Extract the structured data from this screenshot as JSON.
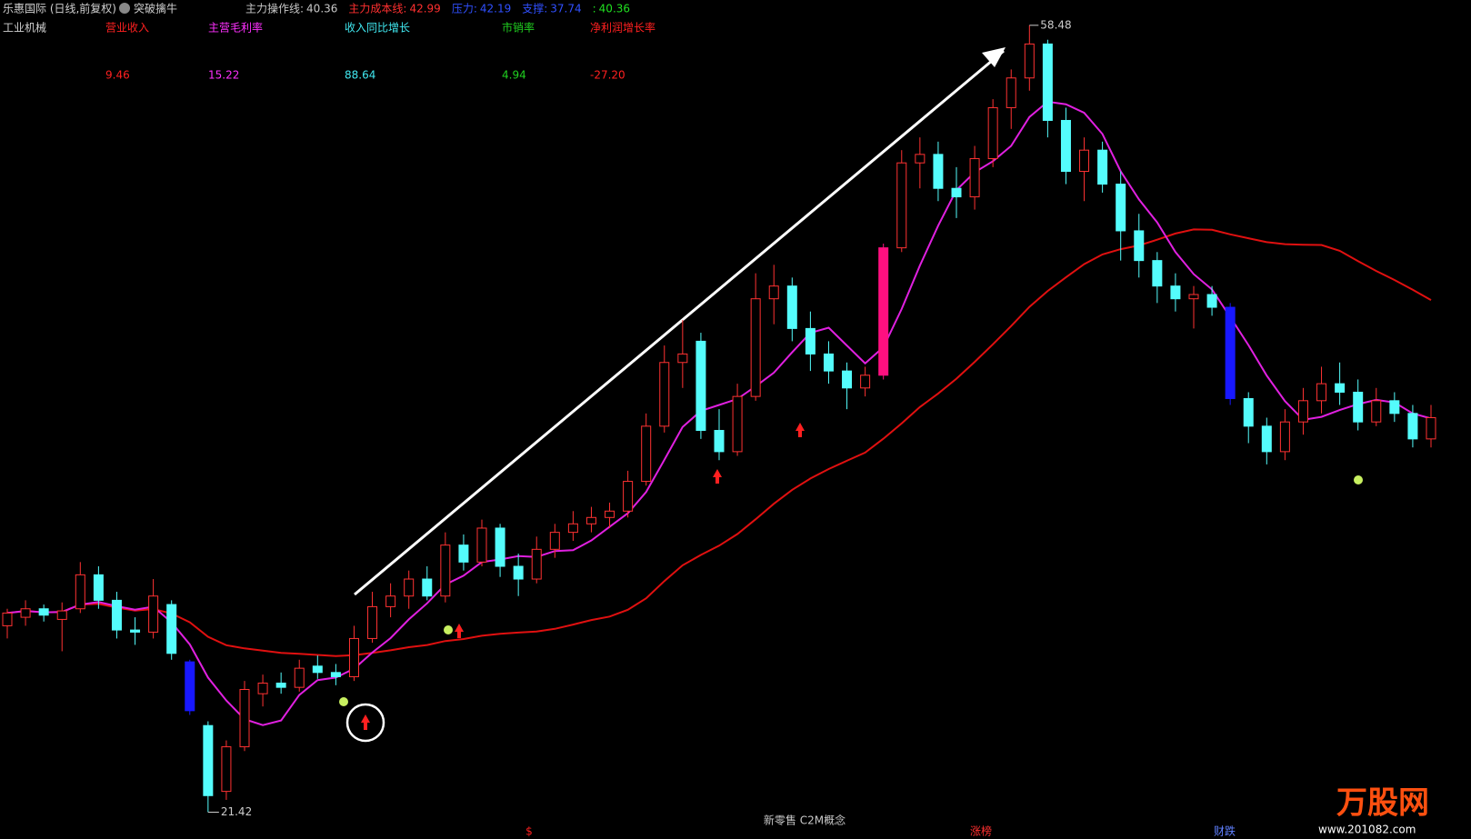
{
  "chart_data": {
    "type": "candlestick",
    "title": "乐惠国际 (日线,前复权)",
    "formula": "突破擒牛",
    "indicators": [
      {
        "name": "主力操作线:",
        "value": 40.36,
        "color": "#c8c8c8"
      },
      {
        "name": "主力成本线:",
        "value": 42.99,
        "color": "#ff3030"
      },
      {
        "name": "压力:",
        "value": 42.19,
        "color": "#3050ff"
      },
      {
        "name": "支撑:",
        "value": 37.74,
        "color": "#3050ff"
      },
      {
        "name": ":",
        "value": 40.36,
        "color": "#20e020"
      }
    ],
    "industry": "工业机械",
    "fundamentals": [
      {
        "name": "营业收入",
        "value": 9.46,
        "color": "#ff2020"
      },
      {
        "name": "主营毛利率",
        "value": 15.22,
        "color": "#ff30ff"
      },
      {
        "name": "收入同比增长",
        "value": 88.64,
        "color": "#40e8f0"
      },
      {
        "name": "市销率",
        "value": 4.94,
        "color": "#20d020"
      },
      {
        "name": "净利润增长率",
        "value": -27.2,
        "value_label": "-27.20",
        "color": "#ff2020"
      }
    ],
    "high_label": 58.48,
    "low_label": 21.42,
    "ylim": [
      20.5,
      59.5
    ],
    "up_color": "#ff3232",
    "down_color": "#54fcfc",
    "highlight_candles": [
      {
        "index": 10,
        "color": "#1818ff"
      },
      {
        "index": 48,
        "color": "#ff1080"
      },
      {
        "index": 67,
        "color": "#1818ff"
      }
    ],
    "candles": [
      [
        30.2,
        31.0,
        29.6,
        30.8
      ],
      [
        30.6,
        31.4,
        30.2,
        31.0
      ],
      [
        31.0,
        31.2,
        30.4,
        30.7
      ],
      [
        30.5,
        31.3,
        29.0,
        30.9
      ],
      [
        31.0,
        33.2,
        30.8,
        32.6
      ],
      [
        32.6,
        33.0,
        31.0,
        31.4
      ],
      [
        31.4,
        31.8,
        29.6,
        30.0
      ],
      [
        30.0,
        30.6,
        29.3,
        29.9
      ],
      [
        29.9,
        32.4,
        29.6,
        31.6
      ],
      [
        31.2,
        31.4,
        28.6,
        28.9
      ],
      [
        28.5,
        28.6,
        26.0,
        26.2
      ],
      [
        25.5,
        25.7,
        21.42,
        22.2
      ],
      [
        22.4,
        24.8,
        22.0,
        24.5
      ],
      [
        24.5,
        27.6,
        24.3,
        27.2
      ],
      [
        27.0,
        27.9,
        26.4,
        27.5
      ],
      [
        27.5,
        28.0,
        27.0,
        27.3
      ],
      [
        27.3,
        28.6,
        27.1,
        28.2
      ],
      [
        28.3,
        28.8,
        27.7,
        28.0
      ],
      [
        28.0,
        28.4,
        27.4,
        27.8
      ],
      [
        27.8,
        30.2,
        27.6,
        29.6
      ],
      [
        29.6,
        31.8,
        29.4,
        31.1
      ],
      [
        31.1,
        32.2,
        30.6,
        31.6
      ],
      [
        31.6,
        32.8,
        31.0,
        32.4
      ],
      [
        32.4,
        33.0,
        31.4,
        31.6
      ],
      [
        31.6,
        34.6,
        31.3,
        34.0
      ],
      [
        34.0,
        34.5,
        32.8,
        33.2
      ],
      [
        33.2,
        35.2,
        33.0,
        34.8
      ],
      [
        34.8,
        35.0,
        32.5,
        33.0
      ],
      [
        33.0,
        33.6,
        31.6,
        32.4
      ],
      [
        32.4,
        34.4,
        32.2,
        33.8
      ],
      [
        33.8,
        35.0,
        33.4,
        34.6
      ],
      [
        34.6,
        35.6,
        34.2,
        35.0
      ],
      [
        35.0,
        35.8,
        34.6,
        35.3
      ],
      [
        35.3,
        36.0,
        34.8,
        35.6
      ],
      [
        35.6,
        37.5,
        35.3,
        37.0
      ],
      [
        37.0,
        40.2,
        36.8,
        39.6
      ],
      [
        39.6,
        43.4,
        39.3,
        42.6
      ],
      [
        42.6,
        44.6,
        41.4,
        43.0
      ],
      [
        43.6,
        44.0,
        39.0,
        39.4
      ],
      [
        39.4,
        40.4,
        38.0,
        38.4
      ],
      [
        38.4,
        41.6,
        38.2,
        41.0
      ],
      [
        41.0,
        46.8,
        40.8,
        45.6
      ],
      [
        45.6,
        47.2,
        44.4,
        46.2
      ],
      [
        46.2,
        46.6,
        43.6,
        44.2
      ],
      [
        44.2,
        45.0,
        42.2,
        43.0
      ],
      [
        43.0,
        43.6,
        41.6,
        42.2
      ],
      [
        42.2,
        42.6,
        40.4,
        41.4
      ],
      [
        41.4,
        42.4,
        41.0,
        42.0
      ],
      [
        42.0,
        48.2,
        41.8,
        48.0
      ],
      [
        48.0,
        52.6,
        47.8,
        52.0
      ],
      [
        52.0,
        53.2,
        50.8,
        52.4
      ],
      [
        52.4,
        53.0,
        50.2,
        50.8
      ],
      [
        50.8,
        51.8,
        49.4,
        50.4
      ],
      [
        50.4,
        52.8,
        49.8,
        52.2
      ],
      [
        52.2,
        55.0,
        51.8,
        54.6
      ],
      [
        54.6,
        56.4,
        53.6,
        56.0
      ],
      [
        56.0,
        58.48,
        55.4,
        57.6
      ],
      [
        57.6,
        57.8,
        53.2,
        54.0
      ],
      [
        54.0,
        54.6,
        51.0,
        51.6
      ],
      [
        51.6,
        53.2,
        50.2,
        52.6
      ],
      [
        52.6,
        53.0,
        50.6,
        51.0
      ],
      [
        51.0,
        51.6,
        47.4,
        48.8
      ],
      [
        48.8,
        49.6,
        46.6,
        47.4
      ],
      [
        47.4,
        47.8,
        45.4,
        46.2
      ],
      [
        46.2,
        46.8,
        45.0,
        45.6
      ],
      [
        45.6,
        46.2,
        44.2,
        45.8
      ],
      [
        45.8,
        46.2,
        44.8,
        45.2
      ],
      [
        45.2,
        45.4,
        40.6,
        40.9
      ],
      [
        40.9,
        41.2,
        38.8,
        39.6
      ],
      [
        39.6,
        40.0,
        37.8,
        38.4
      ],
      [
        38.4,
        40.4,
        38.0,
        39.8
      ],
      [
        39.8,
        41.4,
        39.2,
        40.8
      ],
      [
        40.8,
        42.4,
        40.2,
        41.6
      ],
      [
        41.6,
        42.6,
        40.6,
        41.2
      ],
      [
        41.2,
        41.8,
        39.4,
        39.8
      ],
      [
        39.8,
        41.4,
        39.6,
        40.8
      ],
      [
        40.8,
        41.2,
        39.8,
        40.2
      ],
      [
        40.2,
        40.6,
        38.6,
        39.0
      ],
      [
        39.0,
        40.6,
        38.6,
        40.0
      ]
    ]
  },
  "footer": {
    "concept": "新零售 C2M概念",
    "dollar": "$",
    "rise": "涨榜",
    "fall": "财跌"
  },
  "watermark": {
    "brand": "万股网",
    "url": "www.201082.com"
  }
}
